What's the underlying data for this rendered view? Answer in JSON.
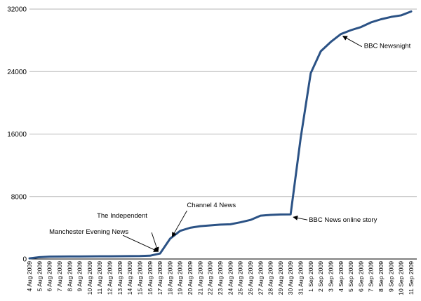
{
  "chart_data": {
    "type": "line",
    "title": "",
    "xlabel": "",
    "ylabel": "",
    "ylim": [
      0,
      32000
    ],
    "yticks": [
      0,
      8000,
      16000,
      24000,
      32000
    ],
    "grid": "horizontal",
    "line_color": "#2b5285",
    "categories": [
      "4 Aug 2009",
      "5 Aug 2009",
      "6 Aug 2009",
      "7 Aug 2009",
      "8 Aug 2009",
      "9 Aug 2009",
      "10 Aug 2009",
      "11 Aug 2009",
      "12 Aug 2009",
      "13 Aug 2009",
      "14 Aug 2009",
      "15 Aug 2009",
      "16 Aug 2009",
      "17 Aug 2009",
      "18 Aug 2009",
      "19 Aug 2009",
      "20 Aug 2009",
      "21 Aug 2009",
      "22 Aug 2009",
      "23 Aug 2009",
      "24 Aug 2009",
      "25 Aug 2009",
      "26 Aug 2009",
      "27 Aug 2009",
      "28 Aug 2009",
      "29 Aug 2009",
      "30 Aug 2009",
      "31 Aug 2009",
      "1 Sep 2009",
      "2 Sep 2009",
      "3 Sep 2009",
      "4 Sep 2009",
      "5 Sep 2009",
      "6 Sep 2009",
      "7 Sep 2009",
      "8 Sep 2009",
      "9 Sep 2009",
      "10 Sep 2009",
      "11 Sep 2009"
    ],
    "values": [
      80,
      240,
      300,
      310,
      320,
      330,
      340,
      350,
      350,
      360,
      370,
      380,
      420,
      700,
      2600,
      3600,
      4000,
      4200,
      4300,
      4400,
      4450,
      4700,
      5000,
      5550,
      5650,
      5700,
      5720,
      15500,
      23800,
      26600,
      27800,
      28800,
      29300,
      29700,
      30300,
      30700,
      31000,
      31200,
      31700
    ],
    "annotations": [
      {
        "text": "Manchester Evening News",
        "x": "17 Aug 2009"
      },
      {
        "text": "The Independent",
        "x": "17 Aug 2009"
      },
      {
        "text": "Channel 4 News",
        "x": "18 Aug 2009"
      },
      {
        "text": "BBC News online story",
        "x": "30 Aug 2009"
      },
      {
        "text": "BBC Newsnight",
        "x": "4 Sep 2009"
      }
    ]
  }
}
